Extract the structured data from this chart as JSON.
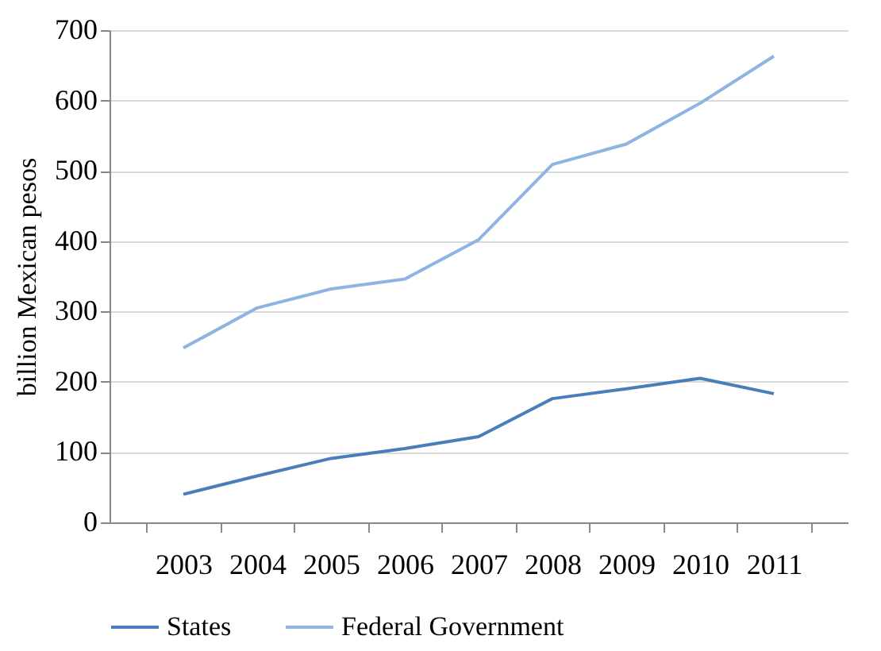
{
  "chart_data": {
    "type": "line",
    "ylabel": "billion Mexican pesos",
    "categories": [
      "2003",
      "2004",
      "2005",
      "2006",
      "2007",
      "2008",
      "2009",
      "2010",
      "2011"
    ],
    "series": [
      {
        "name": "States",
        "color": "#4a7ebb",
        "values": [
          40,
          66,
          91,
          105,
          122,
          176,
          190,
          205,
          183
        ]
      },
      {
        "name": "Federal Government",
        "color": "#8eb4e3",
        "values": [
          248,
          305,
          332,
          346,
          402,
          509,
          538,
          596,
          663
        ]
      }
    ],
    "ylim": [
      0,
      700
    ],
    "yticks": [
      0,
      100,
      200,
      300,
      400,
      500,
      600,
      700
    ],
    "grid": "y",
    "legend": "bottom",
    "marker": "none",
    "line_style": "solid"
  }
}
